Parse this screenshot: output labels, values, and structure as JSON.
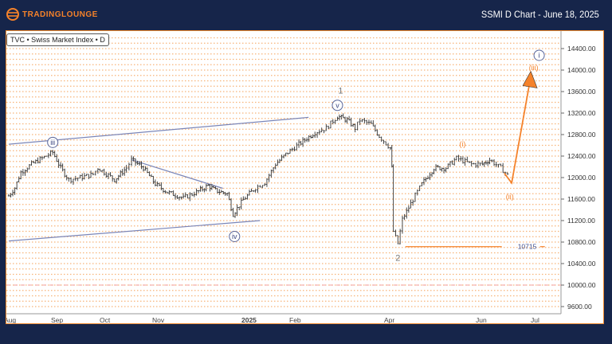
{
  "header": {
    "logo_text": "TradingLounge",
    "title": "SSMI D Chart - June 18, 2025"
  },
  "legend": "TVC • Swiss Market Index • D",
  "colors": {
    "background": "#16254a",
    "brand_orange": "#f5822a",
    "bars": "#333333",
    "channel": "#7b86b8",
    "grid": "#f7b47a",
    "support_dashed": "#f2a0a0"
  },
  "chart_data": {
    "type": "ohlc-line",
    "ylim": [
      9600,
      14600
    ],
    "y_ticks": [
      14400,
      14000,
      13600,
      13200,
      12800,
      12400,
      12000,
      11600,
      11200,
      10800,
      10400,
      10000,
      9600
    ],
    "y_tick_labels": [
      "14400.00",
      "14000.00",
      "13600.00",
      "13200.00",
      "12800.00",
      "12400.00",
      "12000.00",
      "11600.00",
      "11200.00",
      "10800.00",
      "10400.00",
      "10000.00",
      "9600.00"
    ],
    "grid": "dotted horizontal every 100",
    "x_ticks": [
      {
        "label": "Aug",
        "date": "2024-08-01"
      },
      {
        "label": "Sep",
        "date": "2024-09-01"
      },
      {
        "label": "Oct",
        "date": "2024-10-01"
      },
      {
        "label": "Nov",
        "date": "2024-11-01"
      },
      {
        "label": "2025",
        "date": "2025-01-01"
      },
      {
        "label": "Feb",
        "date": "2025-02-01"
      },
      {
        "label": "Apr",
        "date": "2025-04-01"
      },
      {
        "label": "Jun",
        "date": "2025-06-01"
      },
      {
        "label": "Jul",
        "date": "2025-07-01"
      }
    ],
    "price_path": [
      [
        "2024-08-01",
        11660
      ],
      [
        "2024-08-05",
        11810
      ],
      [
        "2024-08-09",
        12100
      ],
      [
        "2024-08-16",
        12250
      ],
      [
        "2024-08-23",
        12360
      ],
      [
        "2024-08-30",
        12470
      ],
      [
        "2024-09-04",
        12180
      ],
      [
        "2024-09-09",
        11960
      ],
      [
        "2024-09-16",
        12000
      ],
      [
        "2024-09-24",
        12060
      ],
      [
        "2024-09-27",
        12180
      ],
      [
        "2024-10-07",
        11960
      ],
      [
        "2024-10-14",
        12180
      ],
      [
        "2024-10-17",
        12330
      ],
      [
        "2024-10-24",
        12180
      ],
      [
        "2024-10-31",
        11880
      ],
      [
        "2024-11-08",
        11730
      ],
      [
        "2024-11-19",
        11620
      ],
      [
        "2024-11-28",
        11730
      ],
      [
        "2024-12-06",
        11850
      ],
      [
        "2024-12-11",
        11760
      ],
      [
        "2024-12-19",
        11700
      ],
      [
        "2024-12-23",
        11320
      ],
      [
        "2024-12-30",
        11590
      ],
      [
        "2025-01-07",
        11810
      ],
      [
        "2025-01-13",
        11910
      ],
      [
        "2025-01-20",
        12250
      ],
      [
        "2025-01-28",
        12470
      ],
      [
        "2025-02-04",
        12620
      ],
      [
        "2025-02-14",
        12840
      ],
      [
        "2025-02-21",
        12920
      ],
      [
        "2025-02-28",
        13140
      ],
      [
        "2025-03-06",
        13070
      ],
      [
        "2025-03-11",
        12920
      ],
      [
        "2025-03-14",
        13070
      ],
      [
        "2025-03-21",
        12990
      ],
      [
        "2025-03-26",
        12770
      ],
      [
        "2025-04-02",
        12550
      ],
      [
        "2025-04-03",
        12180
      ],
      [
        "2025-04-04",
        11000
      ],
      [
        "2025-04-07",
        10770
      ],
      [
        "2025-04-10",
        11220
      ],
      [
        "2025-04-17",
        11590
      ],
      [
        "2025-04-23",
        11880
      ],
      [
        "2025-05-01",
        12180
      ],
      [
        "2025-05-09",
        12180
      ],
      [
        "2025-05-16",
        12360
      ],
      [
        "2025-05-26",
        12250
      ],
      [
        "2025-06-02",
        12250
      ],
      [
        "2025-06-06",
        12330
      ],
      [
        "2025-06-12",
        12180
      ],
      [
        "2025-06-17",
        12000
      ]
    ],
    "channel_upper": [
      [
        "2024-08-01",
        12620
      ],
      [
        "2025-02-10",
        13120
      ]
    ],
    "channel_lower": [
      [
        "2024-08-01",
        10820
      ],
      [
        "2025-01-10",
        11200
      ]
    ],
    "descending_line": [
      [
        "2024-10-17",
        12330
      ],
      [
        "2024-12-16",
        11800
      ]
    ],
    "support_line": {
      "value": 10715,
      "label": "10715",
      "from": "2025-04-12",
      "to": "2025-06-30"
    },
    "dashed_level": 10000,
    "projection": [
      [
        "2025-06-14",
        12080
      ],
      [
        "2025-06-18",
        11900
      ],
      [
        "2025-06-28",
        13800
      ]
    ],
    "wave_labels": [
      {
        "text": "iii",
        "date": "2024-08-30",
        "price": 12610,
        "style": "circled-blue"
      },
      {
        "text": "iv",
        "date": "2024-12-24",
        "price": 10860,
        "style": "circled-blue"
      },
      {
        "text": "v",
        "date": "2025-02-28",
        "price": 13300,
        "style": "circled-blue"
      },
      {
        "text": "1",
        "date": "2025-03-02",
        "price": 13560,
        "style": "gray"
      },
      {
        "text": "2",
        "date": "2025-04-07",
        "price": 10450,
        "style": "gray"
      },
      {
        "text": "(i)",
        "date": "2025-05-20",
        "price": 12580,
        "style": "orange"
      },
      {
        "text": "(ii)",
        "date": "2025-06-17",
        "price": 11600,
        "style": "orange"
      },
      {
        "text": "(iii)",
        "date": "2025-06-30",
        "price": 14000,
        "style": "orange"
      },
      {
        "text": "i",
        "date": "2025-07-03",
        "price": 14230,
        "style": "circled-blue"
      }
    ]
  }
}
